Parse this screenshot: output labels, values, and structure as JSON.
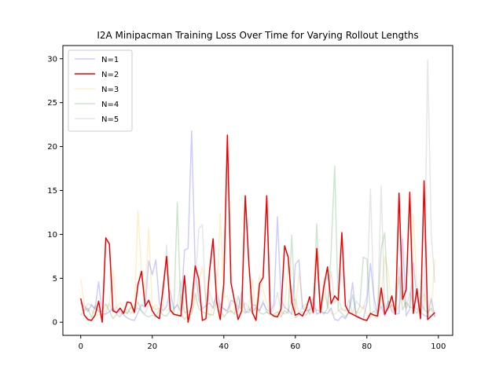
{
  "chart_data": {
    "type": "line",
    "title": "I2A Minipacman Training Loss Over Time for Varying Rollout Lengths",
    "xlabel": "",
    "ylabel": "",
    "xlim": [
      -5,
      104
    ],
    "ylim": [
      -1.5,
      31.5
    ],
    "xticks": [
      0,
      20,
      40,
      60,
      80,
      100
    ],
    "yticks": [
      0,
      5,
      10,
      15,
      20,
      25,
      30
    ],
    "legend_position": "top-left",
    "x": [
      0,
      1,
      2,
      3,
      4,
      5,
      6,
      7,
      8,
      9,
      10,
      11,
      12,
      13,
      14,
      15,
      16,
      17,
      18,
      19,
      20,
      21,
      22,
      23,
      24,
      25,
      26,
      27,
      28,
      29,
      30,
      31,
      32,
      33,
      34,
      35,
      36,
      37,
      38,
      39,
      40,
      41,
      42,
      43,
      44,
      45,
      46,
      47,
      48,
      49,
      50,
      51,
      52,
      53,
      54,
      55,
      56,
      57,
      58,
      59,
      60,
      61,
      62,
      63,
      64,
      65,
      66,
      67,
      68,
      69,
      70,
      71,
      72,
      73,
      74,
      75,
      76,
      77,
      78,
      79,
      80,
      81,
      82,
      83,
      84,
      85,
      86,
      87,
      88,
      89,
      90,
      91,
      92,
      93,
      94,
      95,
      96,
      97,
      98,
      99
    ],
    "series": [
      {
        "name": "N=1",
        "color": "#0000ff",
        "opacity": 0.2,
        "width": 1.5,
        "values": [
          2.2,
          1.8,
          1.2,
          2.0,
          1.5,
          4.6,
          1.0,
          0.9,
          1.2,
          1.6,
          1.0,
          1.3,
          0.8,
          0.5,
          0.3,
          0.2,
          1.1,
          2.0,
          1.7,
          7.0,
          5.4,
          7.1,
          2.1,
          1.3,
          1.8,
          3.6,
          1.5,
          2.0,
          1.2,
          8.2,
          8.4,
          21.8,
          6.1,
          2.6,
          1.5,
          1.9,
          2.2,
          1.6,
          3.4,
          2.0,
          1.5,
          1.3,
          2.5,
          2.3,
          1.4,
          3.4,
          1.2,
          1.1,
          2.0,
          1.9,
          1.3,
          2.2,
          1.4,
          1.2,
          2.0,
          12.0,
          2.6,
          1.7,
          1.4,
          0.9,
          6.6,
          7.1,
          1.6,
          1.3,
          1.4,
          2.8,
          0.9,
          1.2,
          1.1,
          1.0,
          1.6,
          0.3,
          0.2,
          0.7,
          0.4,
          1.2,
          4.5,
          0.6,
          0.4,
          0.3,
          2.2,
          6.7,
          2.8,
          0.9,
          1.8,
          0.7,
          2.4,
          1.2,
          0.9,
          1.0,
          9.5,
          0.7,
          1.5,
          6.8,
          2.6,
          1.1,
          0.8,
          0.6,
          2.7,
          0.6
        ]
      },
      {
        "name": "N=2",
        "color": "#ee0000",
        "opacity": 1,
        "width": 1.5,
        "values": [
          2.7,
          0.8,
          0.3,
          0.2,
          0.8,
          2.4,
          0.0,
          9.6,
          8.9,
          1.3,
          1.1,
          1.6,
          1.0,
          2.3,
          2.2,
          1.1,
          4.3,
          5.8,
          1.8,
          2.5,
          1.3,
          0.7,
          0.4,
          3.8,
          7.5,
          1.4,
          0.9,
          0.8,
          0.7,
          5.3,
          0.0,
          2.0,
          6.4,
          4.9,
          0.2,
          0.4,
          5.8,
          9.5,
          2.3,
          0.3,
          4.4,
          21.3,
          4.5,
          2.4,
          0.3,
          1.3,
          14.4,
          6.7,
          1.1,
          0.2,
          4.4,
          5.1,
          14.4,
          1.0,
          0.7,
          0.6,
          1.5,
          8.7,
          7.4,
          2.3,
          0.8,
          1.0,
          0.7,
          1.5,
          2.9,
          1.1,
          8.4,
          1.1,
          4.1,
          6.3,
          2.1,
          3.0,
          2.5,
          10.2,
          1.9,
          1.1,
          0.9,
          0.7,
          0.5,
          0.3,
          0.2,
          1.0,
          0.8,
          0.7,
          3.9,
          0.9,
          1.7,
          3.0,
          0.9,
          14.7,
          2.6,
          3.7,
          14.8,
          1.0,
          3.8,
          0.4,
          16.1,
          0.3,
          0.7,
          1.1
        ]
      },
      {
        "name": "N=3",
        "color": "#ffa500",
        "opacity": 0.2,
        "width": 1.5,
        "values": [
          4.9,
          2.0,
          1.4,
          1.3,
          1.0,
          0.8,
          0.9,
          1.5,
          2.3,
          6.0,
          1.7,
          2.2,
          1.6,
          0.9,
          1.7,
          1.3,
          12.7,
          5.6,
          2.8,
          10.7,
          1.5,
          2.0,
          1.4,
          2.0,
          1.3,
          1.6,
          1.0,
          0.7,
          3.1,
          1.2,
          0.6,
          1.3,
          2.2,
          4.8,
          6.3,
          2.4,
          0.5,
          1.8,
          2.2,
          12.4,
          2.8,
          3.0,
          1.0,
          1.6,
          1.1,
          2.5,
          1.3,
          1.7,
          4.9,
          1.0,
          5.4,
          3.7,
          2.1,
          1.1,
          0.6,
          1.0,
          0.9,
          1.4,
          6.6,
          3.3,
          1.1,
          5.6,
          1.8,
          1.6,
          0.9,
          1.2,
          1.3,
          1.4,
          3.4,
          2.0,
          1.0,
          0.9,
          1.3,
          1.6,
          1.3,
          1.1,
          0.9,
          1.2,
          1.0,
          1.9,
          0.8,
          0.6,
          0.6,
          0.5,
          2.9,
          7.5,
          5.6,
          1.3,
          1.2,
          1.8,
          3.6,
          1.5,
          2.4,
          12.3,
          4.1,
          2.6,
          3.2,
          1.5,
          1.2,
          7.1
        ]
      },
      {
        "name": "N=4",
        "color": "#008000",
        "opacity": 0.2,
        "width": 1.5,
        "values": [
          0.8,
          1.3,
          1.6,
          0.5,
          1.9,
          1.2,
          1.3,
          2.1,
          1.3,
          0.4,
          0.9,
          0.6,
          1.3,
          1.0,
          1.7,
          1.4,
          2.3,
          1.2,
          0.8,
          0.6,
          0.8,
          0.7,
          1.4,
          0.8,
          0.7,
          1.3,
          0.9,
          13.6,
          1.0,
          0.3,
          0.8,
          0.9,
          3.3,
          1.5,
          1.2,
          1.0,
          0.9,
          0.8,
          2.5,
          1.6,
          0.6,
          1.1,
          1.3,
          0.9,
          3.0,
          1.4,
          1.0,
          1.5,
          1.2,
          1.7,
          1.1,
          0.9,
          1.2,
          0.8,
          0.9,
          1.2,
          0.6,
          1.3,
          1.0,
          9.9,
          0.5,
          0.9,
          1.2,
          0.8,
          1.4,
          1.7,
          11.2,
          1.3,
          0.9,
          1.6,
          8.0,
          17.8,
          1.4,
          1.0,
          0.6,
          1.2,
          3.1,
          0.9,
          1.8,
          7.4,
          7.2,
          0.9,
          1.3,
          0.8,
          8.3,
          10.2,
          1.5,
          2.0,
          1.6,
          5.2,
          1.4,
          2.3,
          1.7,
          1.6,
          1.0,
          2.2,
          1.4,
          1.1,
          1.6,
          0.6
        ]
      },
      {
        "name": "N=5",
        "color": "#808080",
        "opacity": 0.2,
        "width": 1.5,
        "values": [
          2.2,
          1.4,
          2.1,
          1.9,
          1.5,
          1.3,
          0.8,
          1.0,
          2.1,
          1.1,
          1.7,
          0.9,
          1.2,
          1.5,
          1.0,
          1.4,
          1.6,
          1.3,
          1.0,
          2.0,
          1.8,
          1.4,
          1.6,
          2.2,
          8.8,
          1.2,
          1.4,
          2.0,
          4.7,
          1.1,
          1.2,
          1.5,
          4.4,
          10.6,
          11.1,
          1.6,
          3.5,
          2.1,
          2.9,
          1.4,
          1.6,
          1.1,
          2.0,
          2.4,
          1.8,
          1.5,
          2.2,
          1.7,
          0.9,
          1.6,
          1.3,
          2.5,
          1.1,
          1.0,
          1.5,
          3.4,
          1.2,
          0.9,
          1.3,
          2.4,
          2.6,
          1.0,
          1.8,
          2.1,
          0.9,
          1.7,
          1.4,
          1.2,
          5.0,
          1.6,
          5.8,
          2.2,
          2.8,
          1.4,
          1.3,
          2.6,
          1.0,
          2.4,
          1.9,
          1.5,
          3.0,
          15.2,
          1.7,
          1.1,
          15.5,
          1.3,
          2.4,
          1.9,
          1.0,
          6.3,
          2.8,
          1.6,
          3.4,
          2.1,
          1.4,
          2.7,
          1.5,
          29.9,
          10.0,
          4.5
        ]
      }
    ]
  }
}
